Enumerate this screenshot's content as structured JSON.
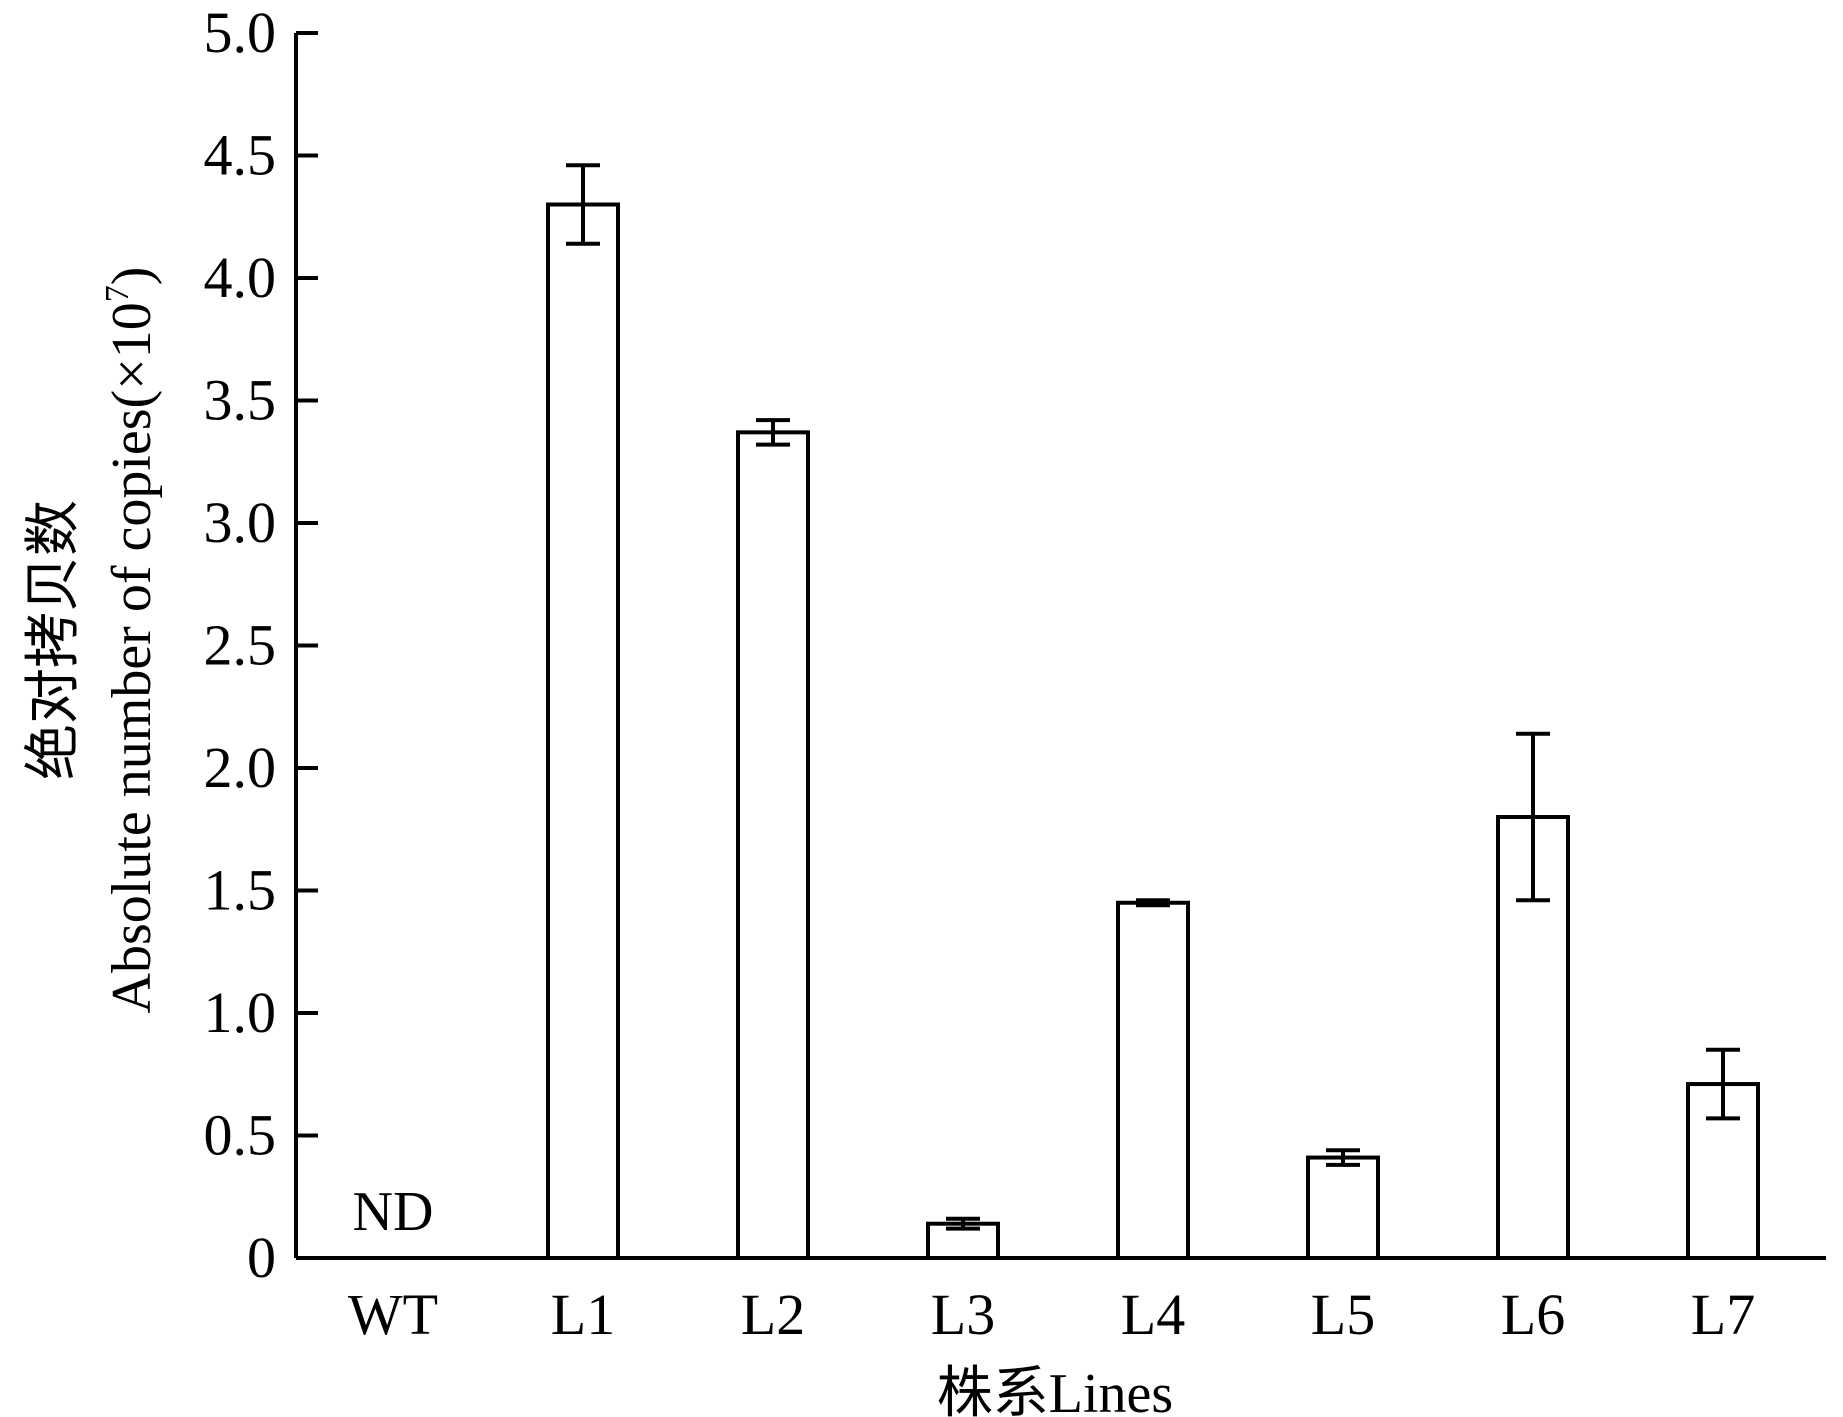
{
  "chart_data": {
    "type": "bar",
    "xlabel": "株系Lines",
    "ylabel_line1": "绝对拷贝数",
    "ylabel_line2_text": "Absolute number of copies(×10",
    "ylabel_line2_sup": "7",
    "ylabel_line2_close": ")",
    "ylim": [
      0,
      5.0
    ],
    "ytick_values": [
      0,
      0.5,
      1.0,
      1.5,
      2.0,
      2.5,
      3.0,
      3.5,
      4.0,
      4.5,
      5.0
    ],
    "ytick_labels": [
      "0",
      "0.5",
      "1.0",
      "1.5",
      "2.0",
      "2.5",
      "3.0",
      "3.5",
      "4.0",
      "4.5",
      "5.0"
    ],
    "categories": [
      "WT",
      "L1",
      "L2",
      "L3",
      "L4",
      "L5",
      "L6",
      "L7"
    ],
    "values": [
      0,
      4.3,
      3.37,
      0.14,
      1.45,
      0.41,
      1.8,
      0.71
    ],
    "errors": [
      0,
      0.16,
      0.05,
      0.02,
      0.01,
      0.03,
      0.34,
      0.14
    ],
    "annotations": [
      {
        "category": "WT",
        "text": "ND"
      }
    ],
    "bar_fill": "#ffffff",
    "bar_stroke": "#000000",
    "grid": false,
    "legend": "none"
  }
}
